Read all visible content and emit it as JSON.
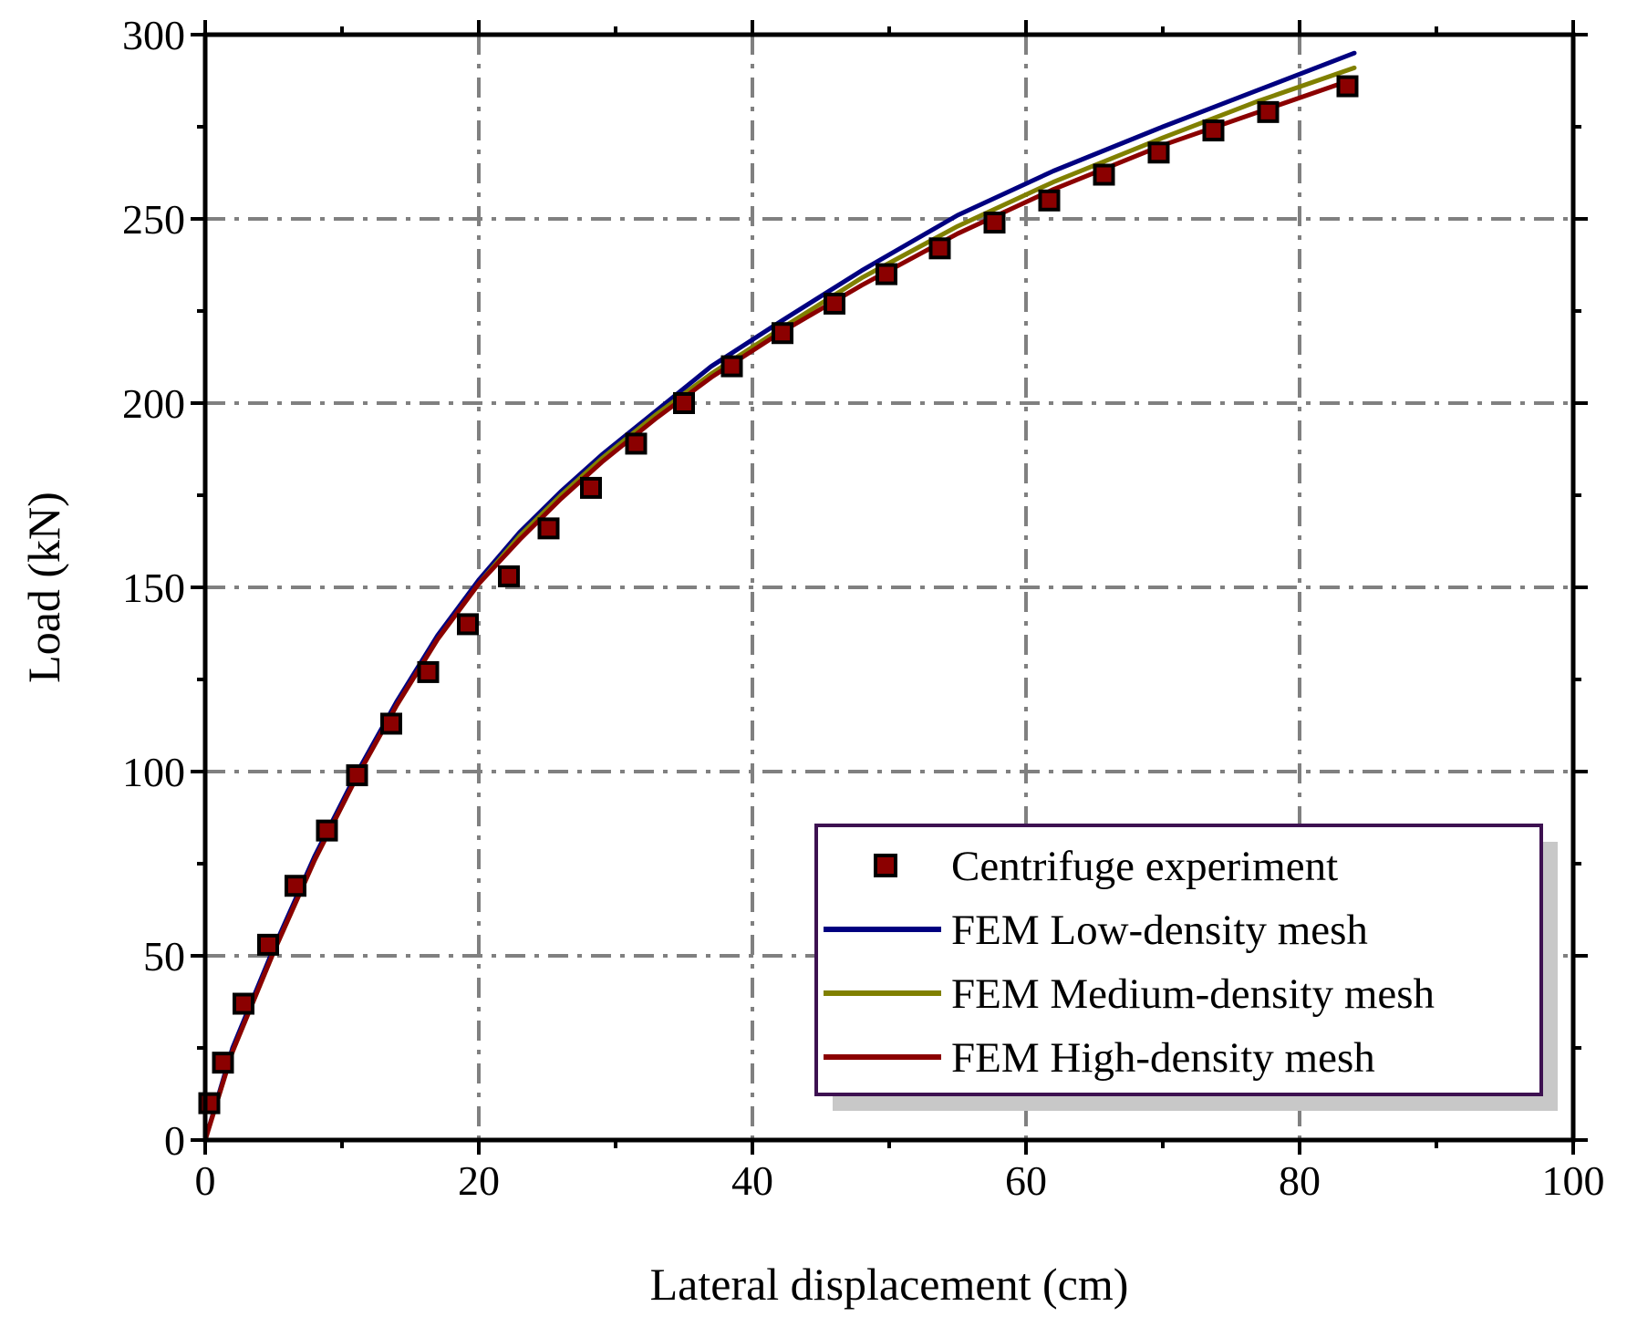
{
  "chart_data": {
    "type": "line",
    "xlabel": "Lateral displacement (cm)",
    "ylabel": "Load (kN)",
    "xlim": [
      0,
      100
    ],
    "ylim": [
      0,
      300
    ],
    "x_ticks": [
      0,
      20,
      40,
      60,
      80,
      100
    ],
    "y_ticks": [
      0,
      50,
      100,
      150,
      200,
      250,
      300
    ],
    "grid": true,
    "legend_position": "bottom-right",
    "series": [
      {
        "name": "Centrifuge experiment",
        "kind": "scatter",
        "color": "#8B0000",
        "x": [
          0.3,
          1.3,
          2.8,
          4.6,
          6.6,
          8.9,
          11.1,
          13.6,
          16.3,
          19.2,
          22.2,
          25.1,
          28.2,
          31.5,
          35.0,
          38.5,
          42.2,
          46.0,
          49.8,
          53.7,
          57.7,
          61.7,
          65.7,
          69.7,
          73.7,
          77.7,
          83.5
        ],
        "y": [
          10,
          21,
          37,
          53,
          69,
          84,
          99,
          113,
          127,
          140,
          153,
          166,
          177,
          189,
          200,
          210,
          219,
          227,
          235,
          242,
          249,
          255,
          262,
          268,
          274,
          279,
          286
        ]
      },
      {
        "name": "FEM Low-density mesh",
        "kind": "line",
        "color": "#000080",
        "x": [
          0,
          2,
          5,
          8,
          11,
          14,
          17,
          20,
          23,
          26,
          29,
          33,
          37,
          42,
          48,
          55,
          62,
          70,
          77,
          84
        ],
        "y": [
          0,
          25,
          52,
          77,
          99,
          119,
          137,
          152,
          165,
          176,
          186,
          198,
          210,
          222,
          236,
          251,
          263,
          275,
          285,
          295
        ]
      },
      {
        "name": "FEM Medium-density mesh",
        "kind": "line",
        "color": "#808000",
        "x": [
          0,
          2,
          5,
          8,
          11,
          14,
          17,
          20,
          23,
          26,
          29,
          33,
          37,
          42,
          48,
          55,
          62,
          70,
          77,
          84
        ],
        "y": [
          0,
          24,
          51,
          76,
          98,
          118,
          136,
          151,
          164,
          175,
          185,
          197,
          208,
          220,
          234,
          248,
          260,
          272,
          282,
          291
        ]
      },
      {
        "name": "FEM High-density mesh",
        "kind": "line",
        "color": "#8B0000",
        "x": [
          0,
          2,
          5,
          8,
          11,
          14,
          17,
          20,
          23,
          26,
          29,
          33,
          37,
          42,
          48,
          55,
          62,
          70,
          77,
          84
        ],
        "y": [
          0,
          24,
          51,
          76,
          98,
          118,
          136,
          151,
          163,
          174,
          184,
          196,
          207,
          219,
          232,
          246,
          258,
          270,
          279,
          288
        ]
      }
    ]
  }
}
